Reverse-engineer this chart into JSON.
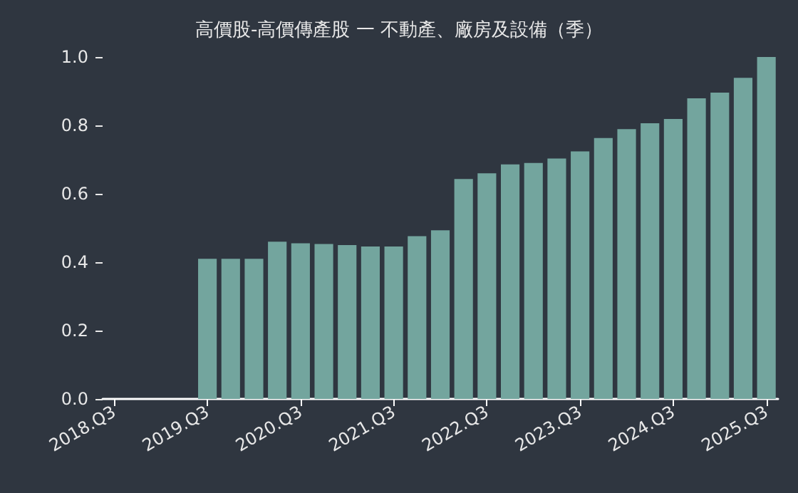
{
  "chart_data": {
    "type": "bar",
    "title": "高價股-高價傳產股 一 不動產、廠房及設備（季）",
    "categories": [
      "2018.Q3",
      null,
      null,
      null,
      "2019.Q3",
      null,
      null,
      null,
      "2020.Q3",
      null,
      null,
      null,
      "2021.Q3",
      null,
      null,
      null,
      "2022.Q3",
      null,
      null,
      null,
      "2023.Q3",
      null,
      null,
      null,
      "2024.Q3",
      null,
      null,
      null,
      "2025.Q3"
    ],
    "values": [
      null,
      null,
      null,
      null,
      0.41,
      0.41,
      0.41,
      0.46,
      0.455,
      0.453,
      0.45,
      0.446,
      0.446,
      0.476,
      0.493,
      0.643,
      0.66,
      0.686,
      0.69,
      0.703,
      0.724,
      0.763,
      0.789,
      0.806,
      0.819,
      0.879,
      0.896,
      0.939,
      1.0
    ],
    "color": "#73a59e",
    "ylim": [
      0,
      1
    ],
    "yticks": [
      {
        "value": 0,
        "label": "0.0"
      },
      0.2,
      0.4,
      0.6,
      0.8,
      {
        "value": 1,
        "label": "1.0"
      }
    ],
    "grid": false
  }
}
